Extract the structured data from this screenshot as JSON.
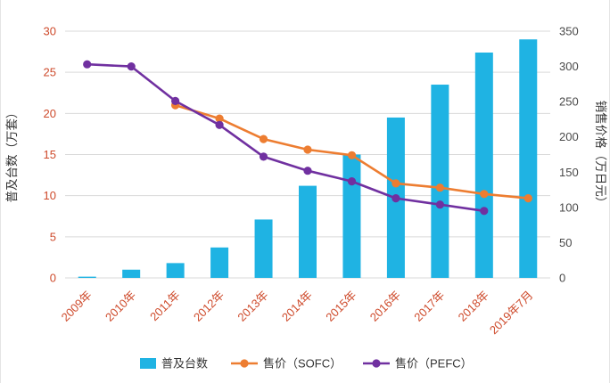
{
  "chart_data": {
    "type": "bar+line combo",
    "title": "",
    "categories": [
      "2009年",
      "2010年",
      "2011年",
      "2012年",
      "2013年",
      "2014年",
      "2015年",
      "2016年",
      "2017年",
      "2018年",
      "2019年7月"
    ],
    "series": [
      {
        "name": "普及台数",
        "type": "bar",
        "axis": "left",
        "values": [
          0.15,
          1.0,
          1.8,
          3.7,
          7.1,
          11.2,
          15.0,
          19.5,
          23.5,
          27.4,
          29.0
        ]
      },
      {
        "name": "售价（SOFC）",
        "type": "line",
        "axis": "right",
        "values": [
          null,
          null,
          245,
          226,
          197,
          182,
          174,
          134,
          128,
          119,
          113
        ]
      },
      {
        "name": "售价（PEFC）",
        "type": "line",
        "axis": "right",
        "values": [
          303,
          300,
          251,
          217,
          172,
          152,
          137,
          113,
          104,
          95,
          null
        ]
      }
    ],
    "left_axis": {
      "title": "普及台数（万套）",
      "min": 0,
      "max": 30,
      "ticks": [
        0,
        5,
        10,
        15,
        20,
        25,
        30
      ]
    },
    "right_axis": {
      "title": "销售价格（万日元）",
      "min": 0,
      "max": 350,
      "ticks": [
        0,
        50,
        100,
        150,
        200,
        250,
        300,
        350
      ]
    },
    "legend": {
      "position": "bottom",
      "entries": [
        "普及台数",
        "售价（SOFC）",
        "售价（PEFC）"
      ]
    },
    "grid": "horizontal-on"
  },
  "palette": {
    "bar_cyan": "#1FB3E3",
    "line_orange": "#ED7D31",
    "line_purple": "#7030A0",
    "gridline": "#D9D9D9",
    "tick_label_red": "#CE4A2B",
    "right_tick_label": "#4A4A4A",
    "axis_title": "#333333",
    "legend_text": "#333333",
    "background": "#FFFFFF"
  }
}
